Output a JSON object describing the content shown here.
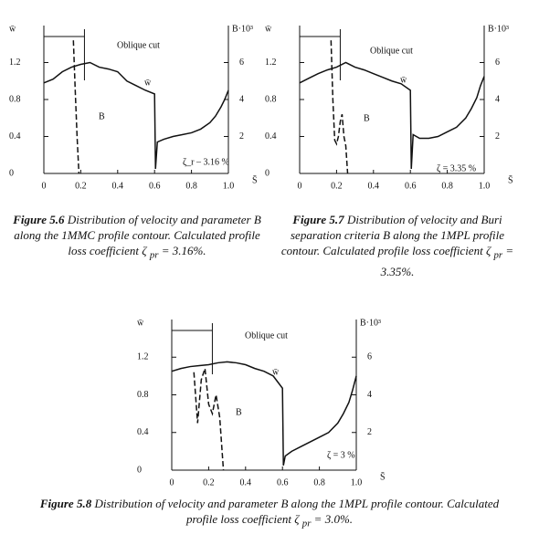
{
  "chart_data": [
    {
      "type": "line",
      "y_label": "w̄",
      "y2_label": "B·10³",
      "x_label": "S̄",
      "xlim": [
        0,
        1.0
      ],
      "xticks": [
        0,
        0.2,
        0.4,
        0.6,
        0.8,
        {
          "value": 1.0,
          "label": "1.0"
        }
      ],
      "ylim": [
        0,
        1.6
      ],
      "yticks": [
        0,
        0.4,
        0.8,
        1.2
      ],
      "y2lim": [
        0,
        8
      ],
      "y2ticks": [
        2,
        4,
        6
      ],
      "series": [
        {
          "name": "w̄",
          "color": "#111111",
          "line_style": "solid",
          "x": [
            0,
            0.05,
            0.1,
            0.15,
            0.2,
            0.25,
            0.3,
            0.35,
            0.4,
            0.45,
            0.5,
            0.55,
            0.6,
            0.605,
            0.615,
            0.65,
            0.7,
            0.75,
            0.8,
            0.85,
            0.9,
            0.93,
            0.96,
            0.98,
            1.0
          ],
          "values": [
            0.98,
            1.02,
            1.1,
            1.15,
            1.18,
            1.2,
            1.15,
            1.13,
            1.1,
            1.0,
            0.95,
            0.9,
            0.86,
            0.05,
            0.34,
            0.37,
            0.4,
            0.42,
            0.44,
            0.48,
            0.55,
            0.62,
            0.72,
            0.8,
            0.9
          ]
        },
        {
          "name": "B",
          "color": "#111111",
          "line_style": "dashed",
          "axis": "y2",
          "x": [
            0.16,
            0.17,
            0.18,
            0.19
          ],
          "values": [
            7.2,
            4.5,
            2.0,
            0
          ]
        }
      ],
      "annotations": [
        "Oblique cut",
        "w̄",
        "B",
        "ζ_r – 3.16 %"
      ],
      "caption": {
        "label": "Figure 5.6",
        "text": "Distribution of velocity and parameter B along the 1MMC profile contour. Calculated profile loss coefficient",
        "symbol": "ζ",
        "subscript": "pr",
        "value": "= 3.16%."
      }
    },
    {
      "type": "line",
      "y_label": "w̄",
      "y2_label": "B·10³",
      "x_label": "S̄",
      "xlim": [
        0,
        1.0
      ],
      "xticks": [
        0,
        0.2,
        0.4,
        0.6,
        0.8,
        {
          "value": 1.0,
          "label": "1.0"
        }
      ],
      "ylim": [
        0,
        1.6
      ],
      "yticks": [
        0,
        0.4,
        0.8,
        1.2
      ],
      "y2lim": [
        0,
        8
      ],
      "y2ticks": [
        2,
        4,
        6
      ],
      "series": [
        {
          "name": "w̄",
          "color": "#111111",
          "line_style": "solid",
          "x": [
            0,
            0.05,
            0.1,
            0.15,
            0.2,
            0.25,
            0.3,
            0.35,
            0.4,
            0.45,
            0.5,
            0.55,
            0.6,
            0.605,
            0.615,
            0.65,
            0.7,
            0.75,
            0.8,
            0.85,
            0.9,
            0.93,
            0.96,
            0.98,
            1.0
          ],
          "values": [
            0.98,
            1.03,
            1.08,
            1.12,
            1.15,
            1.2,
            1.15,
            1.12,
            1.08,
            1.04,
            1.0,
            0.97,
            0.9,
            0.05,
            0.42,
            0.38,
            0.38,
            0.4,
            0.45,
            0.5,
            0.6,
            0.7,
            0.82,
            0.95,
            1.05
          ]
        },
        {
          "name": "B",
          "color": "#111111",
          "line_style": "dashed",
          "axis": "y2",
          "x": [
            0.17,
            0.18,
            0.19,
            0.2,
            0.21,
            0.22,
            0.23,
            0.24,
            0.25,
            0.26
          ],
          "values": [
            7.2,
            4.0,
            1.8,
            1.6,
            2.0,
            2.8,
            3.2,
            2.0,
            1.5,
            0
          ],
          "value_labels": null
        }
      ],
      "annotations": [
        "Oblique cut",
        "w̄",
        "B",
        "ζ = 3.35 %"
      ],
      "caption": {
        "label": "Figure 5.7",
        "text": "Distribution of velocity and Buri separation criteria B along the 1MPL profile contour. Calculated profile loss coefficient",
        "symbol": "ζ",
        "subscript": "pr",
        "value": "= 3.35%."
      }
    },
    {
      "type": "line",
      "y_label": "w̄",
      "y2_label": "B·10³",
      "x_label": "S̄",
      "xlim": [
        0,
        1.0
      ],
      "xticks": [
        0,
        0.2,
        0.4,
        0.6,
        0.8,
        {
          "value": 1.0,
          "label": "1.0"
        }
      ],
      "ylim": [
        0,
        1.6
      ],
      "yticks": [
        0,
        0.4,
        0.8,
        1.2
      ],
      "y2lim": [
        0,
        8
      ],
      "y2ticks": [
        2,
        4,
        6
      ],
      "series": [
        {
          "name": "w̄",
          "color": "#111111",
          "line_style": "solid",
          "x": [
            0,
            0.05,
            0.1,
            0.15,
            0.2,
            0.25,
            0.3,
            0.35,
            0.4,
            0.45,
            0.5,
            0.55,
            0.6,
            0.605,
            0.615,
            0.65,
            0.7,
            0.75,
            0.8,
            0.85,
            0.9,
            0.93,
            0.96,
            0.98,
            1.0
          ],
          "values": [
            1.05,
            1.08,
            1.1,
            1.11,
            1.12,
            1.14,
            1.15,
            1.14,
            1.12,
            1.08,
            1.05,
            1.0,
            0.87,
            0.05,
            0.15,
            0.2,
            0.25,
            0.3,
            0.35,
            0.4,
            0.5,
            0.6,
            0.72,
            0.85,
            1.0
          ]
        },
        {
          "name": "B",
          "color": "#111111",
          "line_style": "dashed",
          "axis": "y2",
          "x": [
            0.12,
            0.14,
            0.16,
            0.18,
            0.2,
            0.22,
            0.24,
            0.26,
            0.28
          ],
          "values": [
            5.2,
            2.5,
            4.8,
            5.4,
            3.5,
            3.0,
            4.0,
            2.8,
            0
          ],
          "value_labels": null
        }
      ],
      "annotations": [
        "Oblique cut",
        "w̄",
        "B",
        "ζ = 3 %"
      ],
      "caption": {
        "label": "Figure 5.8",
        "text": "Distribution of velocity and parameter B along the 1MPL profile contour. Calculated profile loss coefficient",
        "symbol": "ζ",
        "subscript": "pr",
        "value": "= 3.0%."
      }
    }
  ]
}
